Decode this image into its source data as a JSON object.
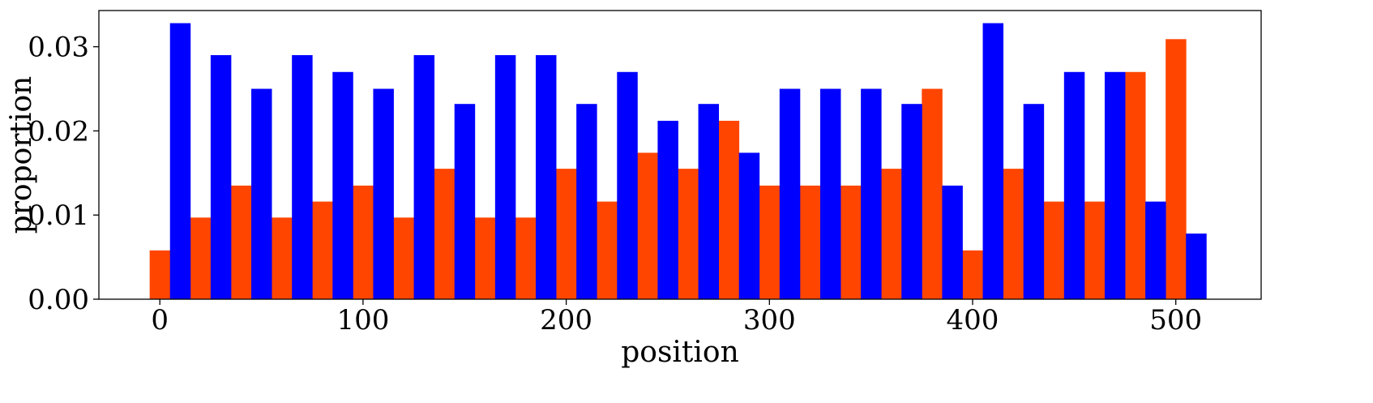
{
  "chart_data": {
    "type": "bar",
    "title": "",
    "xlabel": "position",
    "ylabel": "proportion",
    "xlim": [
      -30,
      542
    ],
    "ylim": [
      0.0,
      0.0343
    ],
    "x_ticks": [
      0,
      100,
      200,
      300,
      400,
      500
    ],
    "x_tick_labels": [
      "0",
      "100",
      "200",
      "300",
      "400",
      "500"
    ],
    "y_ticks": [
      0.0,
      0.01,
      0.02,
      0.03
    ],
    "y_tick_labels": [
      "0.00",
      "0.01",
      "0.02",
      "0.03"
    ],
    "grid": false,
    "legend": "none",
    "bin_width": 20,
    "bin_starts": [
      -5,
      15,
      35,
      55,
      75,
      95,
      115,
      135,
      155,
      175,
      195,
      215,
      235,
      255,
      275,
      295,
      315,
      335,
      355,
      375,
      395,
      415,
      435,
      455,
      475,
      495
    ],
    "series": [
      {
        "color": "#FF4500",
        "values": [
          0.0058,
          0.0097,
          0.0135,
          0.0097,
          0.0116,
          0.0135,
          0.0097,
          0.0155,
          0.0097,
          0.0097,
          0.0155,
          0.0116,
          0.0174,
          0.0155,
          0.0212,
          0.0135,
          0.0135,
          0.0135,
          0.0155,
          0.025,
          0.0058,
          0.0155,
          0.0116,
          0.0116,
          0.027,
          0.0309
        ]
      },
      {
        "color": "#0000FF",
        "values": [
          0.0328,
          0.029,
          0.025,
          0.029,
          0.027,
          0.025,
          0.029,
          0.0232,
          0.029,
          0.029,
          0.0232,
          0.027,
          0.0212,
          0.0232,
          0.0174,
          0.025,
          0.025,
          0.025,
          0.0232,
          0.0135,
          0.0328,
          0.0232,
          0.027,
          0.027,
          0.0116,
          0.0078
        ]
      }
    ]
  }
}
